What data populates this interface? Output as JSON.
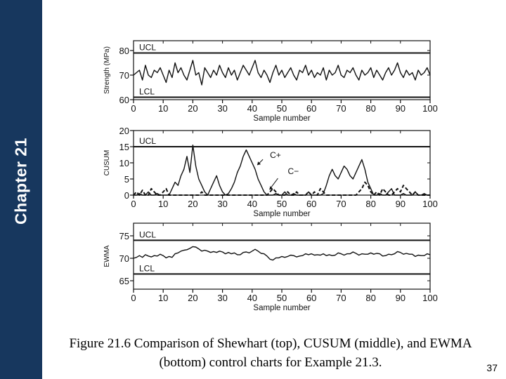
{
  "slide": {
    "chapter_label": "Chapter 21",
    "caption": "Figure 21.6 Comparison of Shewhart (top), CUSUM (middle), and EWMA (bottom) control charts for Example 21.3.",
    "number": "37",
    "sidebar_color": "#17375e"
  },
  "chart_data": [
    {
      "type": "line",
      "ylabel": "Strength (MPa)",
      "xlabel": "Sample number",
      "xlim": [
        0,
        100
      ],
      "ylim": [
        60,
        80
      ],
      "x_ticks": [
        0,
        10,
        20,
        30,
        40,
        50,
        60,
        70,
        80,
        90,
        100
      ],
      "y_ticks": [
        60,
        70,
        80
      ],
      "limits": [
        {
          "label": "UCL",
          "value": 79.0
        },
        {
          "label": "LCL",
          "value": 61.0
        }
      ],
      "series": [
        {
          "values": [
            70,
            71,
            72,
            68,
            74,
            70,
            69,
            72,
            71,
            73,
            70,
            67,
            72,
            69,
            75,
            71,
            73,
            70,
            68,
            72,
            76,
            70,
            71,
            66,
            73,
            71,
            69,
            72,
            70,
            74,
            71,
            69,
            73,
            70,
            72,
            68,
            71,
            74,
            72,
            70,
            73,
            76,
            71,
            69,
            72,
            70,
            67,
            71,
            74,
            70,
            72,
            69,
            71,
            73,
            70,
            68,
            72,
            71,
            74,
            70,
            72,
            69,
            71,
            70,
            73,
            68,
            72,
            70,
            71,
            74,
            70,
            69,
            72,
            71,
            73,
            70,
            68,
            72,
            70,
            71,
            73,
            69,
            72,
            70,
            68,
            71,
            73,
            70,
            72,
            75,
            71,
            69,
            72,
            70,
            71,
            68,
            72,
            70,
            71,
            73,
            70
          ]
        }
      ]
    },
    {
      "type": "line",
      "ylabel": "CUSUM",
      "xlabel": "Sample number",
      "xlim": [
        0,
        100
      ],
      "ylim": [
        0,
        20
      ],
      "x_ticks": [
        0,
        10,
        20,
        30,
        40,
        50,
        60,
        70,
        80,
        90,
        100
      ],
      "y_ticks": [
        0,
        5,
        10,
        15,
        20
      ],
      "limits": [
        {
          "label": "UCL",
          "value": 15.0
        }
      ],
      "annotations": [
        {
          "text": "C+",
          "x": 46,
          "y": 11.5
        },
        {
          "text": "C−",
          "x": 52,
          "y": 6.5
        }
      ],
      "series": [
        {
          "name": "C+",
          "style": "solid",
          "values": [
            0,
            0,
            0.5,
            0,
            0,
            1,
            0,
            0,
            0.5,
            0,
            0,
            0,
            0,
            2,
            4,
            3,
            6,
            8,
            12,
            7,
            15.5,
            9,
            5,
            3,
            1,
            0,
            2,
            4,
            6,
            3,
            1,
            0,
            0.5,
            2,
            4,
            7,
            9,
            12,
            14,
            12,
            10,
            8,
            5,
            3,
            1,
            0,
            0,
            0,
            0.5,
            0,
            0,
            1,
            0,
            0,
            0.5,
            0,
            0,
            0,
            0,
            1,
            0,
            0,
            0,
            0,
            0.5,
            3,
            6,
            8,
            6,
            5,
            7,
            9,
            8,
            6,
            5,
            7,
            9,
            11,
            8,
            4,
            2,
            0,
            0,
            0.5,
            0,
            0,
            1,
            2,
            0,
            0,
            0,
            0.5,
            0,
            0,
            0,
            1,
            0,
            0,
            0.5,
            0,
            0
          ]
        },
        {
          "name": "C−",
          "style": "dashed",
          "values": [
            0,
            1,
            0,
            1.5,
            0,
            0,
            2,
            1,
            0,
            0,
            1,
            2,
            0,
            0,
            0,
            0,
            0,
            0,
            0,
            0,
            0,
            0,
            0,
            1,
            0,
            0,
            0,
            0,
            0,
            0,
            0,
            0,
            0,
            0,
            0,
            0,
            0,
            0,
            0,
            0,
            0,
            0,
            0,
            0,
            0,
            0,
            1,
            2,
            1,
            0,
            0,
            0,
            1,
            0,
            0,
            1,
            0,
            0,
            0,
            1,
            0,
            1,
            0,
            2,
            1,
            0,
            0,
            0,
            0,
            0,
            0,
            0,
            0,
            0,
            0,
            0,
            1,
            2,
            4,
            3,
            1,
            0,
            1,
            0,
            2,
            1,
            0,
            0,
            1,
            2,
            1,
            3,
            2,
            1,
            0,
            1,
            0,
            0,
            0,
            0,
            0
          ]
        }
      ]
    },
    {
      "type": "line",
      "ylabel": "EWMA",
      "xlabel": "Sample number",
      "xlim": [
        0,
        100
      ],
      "ylim": [
        65,
        75
      ],
      "x_ticks": [
        0,
        10,
        20,
        30,
        40,
        50,
        60,
        70,
        80,
        90,
        100
      ],
      "y_ticks": [
        65,
        70,
        75
      ],
      "limits": [
        {
          "label": "UCL",
          "value": 74.0
        },
        {
          "label": "LCL",
          "value": 66.5
        }
      ],
      "series": [
        {
          "values": [
            70,
            70.2,
            70.6,
            70.2,
            70.8,
            70.5,
            70.3,
            70.6,
            70.5,
            70.9,
            70.6,
            70.1,
            70.4,
            70.2,
            71.0,
            71.2,
            71.6,
            71.8,
            71.9,
            72.2,
            72.6,
            72.5,
            72.1,
            71.6,
            71.8,
            71.6,
            71.3,
            71.5,
            71.3,
            71.6,
            71.4,
            71.0,
            71.3,
            71.0,
            71.2,
            70.8,
            70.8,
            71.3,
            71.4,
            71.2,
            71.6,
            72.0,
            71.6,
            71.1,
            71.0,
            70.5,
            69.8,
            69.6,
            70.1,
            70.1,
            70.4,
            70.2,
            70.4,
            70.7,
            70.6,
            70.3,
            70.5,
            70.6,
            71.0,
            70.8,
            71.0,
            70.7,
            70.8,
            70.7,
            71.0,
            70.6,
            70.8,
            70.6,
            70.7,
            71.2,
            71.0,
            70.7,
            71.0,
            71.0,
            71.4,
            71.1,
            70.7,
            71.0,
            70.9,
            70.9,
            71.2,
            70.9,
            71.1,
            71.0,
            70.5,
            70.6,
            70.9,
            70.8,
            71.0,
            71.5,
            71.3,
            70.9,
            71.1,
            70.9,
            70.9,
            70.4,
            70.7,
            70.6,
            70.6,
            71.0,
            70.8
          ]
        }
      ]
    }
  ]
}
